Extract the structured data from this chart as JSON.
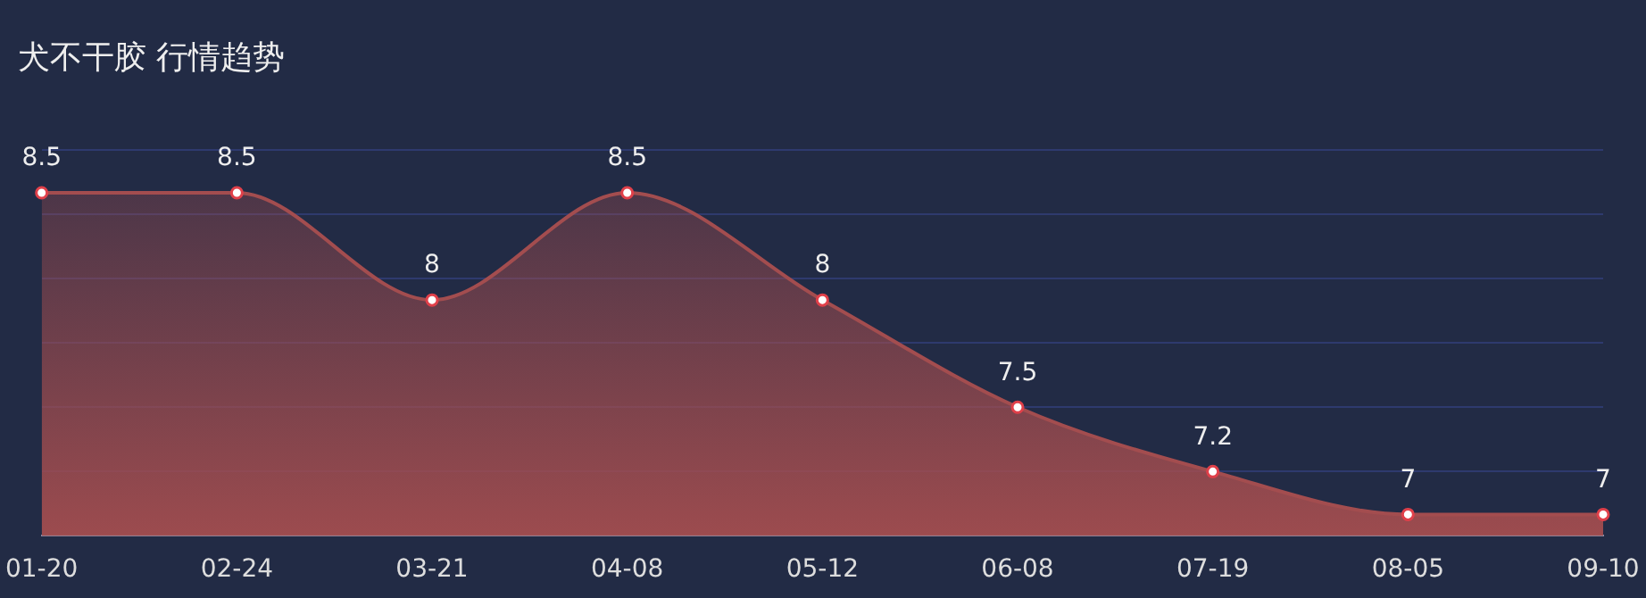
{
  "chart_data": {
    "type": "area",
    "title": "犬不干胶 行情趋势",
    "categories": [
      "01-20",
      "02-24",
      "03-21",
      "04-08",
      "05-12",
      "06-08",
      "07-19",
      "08-05",
      "09-10"
    ],
    "series": [
      {
        "color": "#a34d4f",
        "values": [
          8.5,
          8.5,
          8,
          8.5,
          8,
          7.5,
          7.2,
          7,
          7
        ]
      }
    ],
    "ylim": [
      6.9,
      8.7
    ],
    "yticks": [
      {
        "value": 6.9,
        "label": null
      },
      {
        "value": 7.2,
        "label": null
      },
      {
        "value": 7.5,
        "label": null
      },
      {
        "value": 7.8,
        "label": null
      },
      {
        "value": 8.1,
        "label": null
      },
      {
        "value": 8.4,
        "label": null
      },
      {
        "value": 8.7,
        "label": null
      }
    ],
    "tick_labels": "x",
    "grid": "y",
    "marker": "circle",
    "data_labels": true,
    "legend": false
  }
}
